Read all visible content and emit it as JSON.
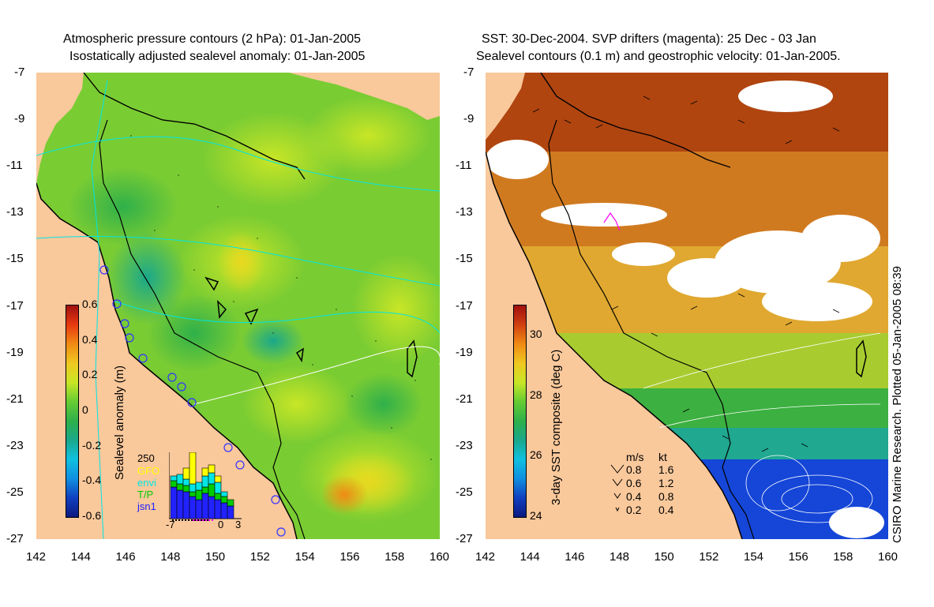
{
  "left_panel": {
    "title_line1": "Atmospheric pressure contours (2 hPa): 01-Jan-2005",
    "title_line2": "Isostatically adjusted sealevel anomaly: 01-Jan-2005",
    "colorbar": {
      "label": "Sealevel anomaly (m)",
      "ticks": [
        "0.6",
        "0.4",
        "0.2",
        "0",
        "-0.2",
        "-0.4",
        "-0.6"
      ]
    },
    "histogram": {
      "ymax_label": "250",
      "legend": [
        {
          "label": "GFO",
          "color": "#ffff00"
        },
        {
          "label": "envi",
          "color": "#00e5e5"
        },
        {
          "label": "T/P",
          "color": "#00cc00"
        },
        {
          "label": "jsn1",
          "color": "#2222ff"
        }
      ],
      "x_ticks": [
        "-7",
        "0",
        "3"
      ]
    }
  },
  "right_panel": {
    "title_line1": "SST: 30-Dec-2004. SVP drifters (magenta): 25 Dec - 03 Jan",
    "title_line2": "Sealevel contours (0.1 m) and geostrophic velocity: 01-Jan-2005.",
    "colorbar": {
      "label": "3-day SST composite (deg C)",
      "ticks": [
        "30",
        "28",
        "26",
        "24"
      ]
    },
    "velocity_legend": {
      "header_ms": "m/s",
      "header_kt": "kt",
      "rows": [
        {
          "ms": "0.8",
          "kt": "1.6"
        },
        {
          "ms": "0.6",
          "kt": "1.2"
        },
        {
          "ms": "0.4",
          "kt": "0.8"
        },
        {
          "ms": "0.2",
          "kt": "0.4"
        }
      ]
    },
    "side_text": "CSIRO Marine Research. Plotted 05-Jan-2005 08:39"
  },
  "axes": {
    "lat_ticks": [
      "-7",
      "-9",
      "-11",
      "-13",
      "-15",
      "-17",
      "-19",
      "-21",
      "-23",
      "-25",
      "-27"
    ],
    "lon_ticks": [
      "142",
      "144",
      "146",
      "148",
      "150",
      "152",
      "154",
      "156",
      "158",
      "160"
    ]
  },
  "colors": {
    "land": "#f9c89b",
    "sla_mid": "#66cc33",
    "sst_warm": "#d2691e",
    "sst_cool": "#1546d8"
  }
}
